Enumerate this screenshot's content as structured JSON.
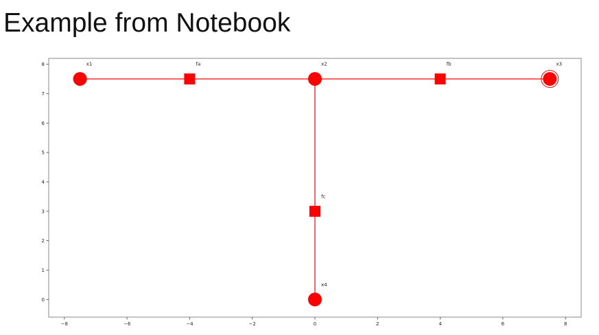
{
  "page": {
    "title": "Example from Notebook"
  },
  "chart_data": {
    "type": "scatter",
    "title": "",
    "xlabel": "",
    "ylabel": "",
    "xlim": [
      -8.5,
      8.5
    ],
    "ylim": [
      -0.6,
      8.2
    ],
    "grid": false,
    "x_ticks": [
      -8,
      -6,
      -4,
      -2,
      0,
      2,
      4,
      6,
      8
    ],
    "y_ticks": [
      0,
      1,
      2,
      3,
      4,
      5,
      6,
      7,
      8
    ],
    "tick_labels_x": [
      "−8",
      "−6",
      "−4",
      "−2",
      "0",
      "2",
      "4",
      "6",
      "8"
    ],
    "tick_labels_y": [
      "0",
      "1",
      "2",
      "3",
      "4",
      "5",
      "6",
      "7",
      "8"
    ],
    "color": "#ff0000",
    "nodes": [
      {
        "id": "x1",
        "label": "x1",
        "x": -7.5,
        "y": 7.5,
        "kind": "variable",
        "ring": false
      },
      {
        "id": "fa",
        "label": "fa",
        "x": -4.0,
        "y": 7.5,
        "kind": "factor",
        "ring": false
      },
      {
        "id": "x2",
        "label": "x2",
        "x": 0.0,
        "y": 7.5,
        "kind": "variable",
        "ring": false
      },
      {
        "id": "fb",
        "label": "fb",
        "x": 4.0,
        "y": 7.5,
        "kind": "factor",
        "ring": false
      },
      {
        "id": "x3",
        "label": "x3",
        "x": 7.5,
        "y": 7.5,
        "kind": "variable",
        "ring": true
      },
      {
        "id": "fc",
        "label": "fc",
        "x": 0.0,
        "y": 3.0,
        "kind": "factor",
        "ring": false
      },
      {
        "id": "x4",
        "label": "x4",
        "x": 0.0,
        "y": 0.0,
        "kind": "variable",
        "ring": false
      }
    ],
    "edges": [
      {
        "from": "x1",
        "to": "fa"
      },
      {
        "from": "fa",
        "to": "x2"
      },
      {
        "from": "x2",
        "to": "fb"
      },
      {
        "from": "fb",
        "to": "x3"
      },
      {
        "from": "x2",
        "to": "fc"
      },
      {
        "from": "fc",
        "to": "x4"
      }
    ]
  }
}
